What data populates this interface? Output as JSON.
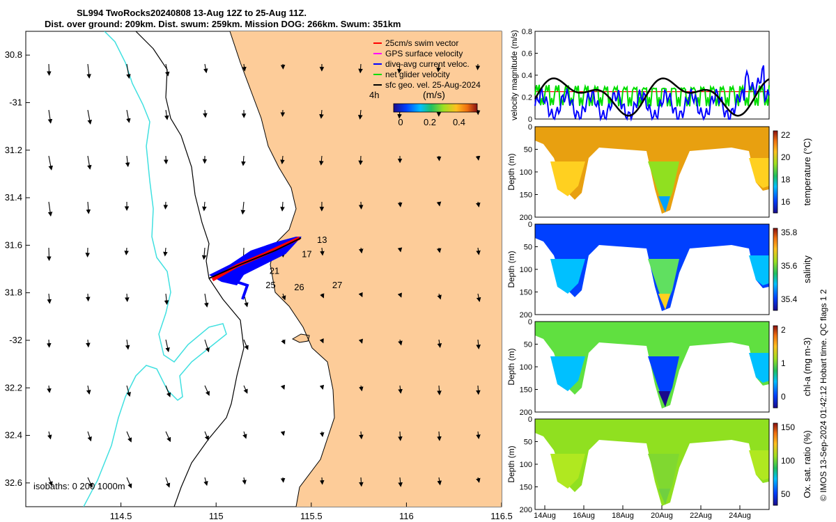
{
  "title": {
    "line1": "SL994 TwoRocks20240808 13-Aug 12Z to 25-Aug 11Z.",
    "line2": "Dist. over ground: 209km. Dist. swum: 259km. Mission DOG: 266km. Swum: 351km"
  },
  "map": {
    "lon_ticks": [
      "114.5",
      "115",
      "115.5",
      "116",
      "116.5"
    ],
    "lat_ticks": [
      "30.8",
      "-31",
      "31.2",
      "31.4",
      "31.6",
      "31.8",
      "-32",
      "32.2",
      "32.4",
      "32.6"
    ],
    "legend": [
      {
        "label": "25cm/s swim vector",
        "color": "#ff0000"
      },
      {
        "label": "GPS surface velocity",
        "color": "#ff00ff"
      },
      {
        "label": "dive-avg current veloc.",
        "color": "#0000ff"
      },
      {
        "label": "net glider velocity",
        "color": "#00dd00"
      },
      {
        "label": "sfc geo. vel. 25-Aug-2024",
        "color": "#000000"
      }
    ],
    "vector_time_label": "4h",
    "colorbar_unit": "(m/s)",
    "colorbar_ticks": [
      "0",
      "0.2",
      "0.4"
    ],
    "day_labels": [
      {
        "text": "13",
        "lon": 115.53,
        "lat": -31.59
      },
      {
        "text": "17",
        "lon": 115.45,
        "lat": -31.65
      },
      {
        "text": "21",
        "lon": 115.28,
        "lat": -31.72
      },
      {
        "text": "25",
        "lon": 115.26,
        "lat": -31.78
      },
      {
        "text": "26",
        "lon": 115.41,
        "lat": -31.79
      },
      {
        "text": "27",
        "lon": 115.61,
        "lat": -31.78
      }
    ],
    "isobath_label": "isobaths: 0   200  1000m",
    "land_color": "#fdcc99",
    "coast_color": "#000000",
    "iso1000_color": "#40e0e0"
  },
  "velocity_panel": {
    "ylabel": "velocity magnitude (m/s)",
    "yticks": [
      "0",
      "0.2",
      "0.4",
      "0.6",
      "0.8"
    ],
    "series": [
      {
        "name": "net glider velocity",
        "color": "#00dd00"
      },
      {
        "name": "dive-avg current veloc.",
        "color": "#0000ff"
      },
      {
        "name": "sfc geo. vel.",
        "color": "#000000"
      },
      {
        "name": "25cm/s swim vector",
        "color": "#ff0000"
      }
    ]
  },
  "sections": [
    {
      "key": "temperature",
      "ylabel": "Depth (m)",
      "cblabel": "temperature (°C)",
      "cbticks": [
        "16",
        "18",
        "20",
        "22"
      ]
    },
    {
      "key": "salinity",
      "ylabel": "Depth (m)",
      "cblabel": "salinity",
      "cbticks": [
        "35.4",
        "35.6",
        "35.8"
      ]
    },
    {
      "key": "chla",
      "ylabel": "Depth (m)",
      "cblabel": "chl-a (mg m-3)",
      "cbticks": [
        "0",
        "1",
        "2"
      ]
    },
    {
      "key": "oxygen",
      "ylabel": "Depth (m)",
      "cblabel": "Ox. sat. ratio (%)",
      "cbticks": [
        "50",
        "100",
        "150"
      ]
    }
  ],
  "depth_ticks": [
    "0",
    "50",
    "100",
    "150",
    "200"
  ],
  "time_ticks": [
    "14Aug",
    "16Aug",
    "18Aug",
    "20Aug",
    "22Aug",
    "24Aug"
  ],
  "credit": "© IMOS 13-Sep-2024 01:42:12 Hobart time. QC flags 1  2"
}
